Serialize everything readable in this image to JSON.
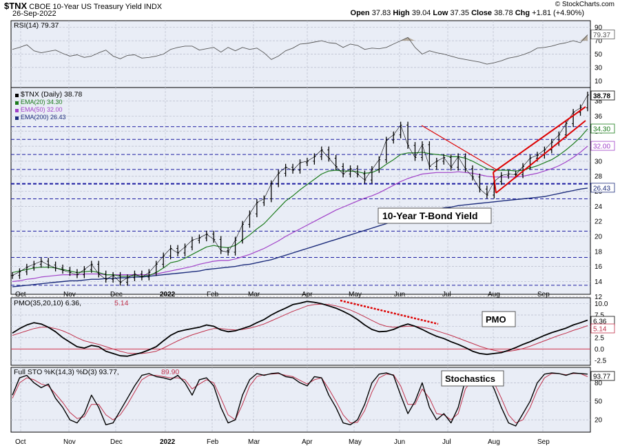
{
  "header": {
    "symbol": "$TNX",
    "name": "CBOE 10-Year US Treasury Yield",
    "exchange": "INDX",
    "date": "26-Sep-2022",
    "open_label": "Open",
    "open": "37.83",
    "high_label": "High",
    "high": "39.04",
    "low_label": "Low",
    "low": "37.35",
    "close_label": "Close",
    "close": "38.78",
    "chg_label": "Chg",
    "chg": "+1.81 (+4.90%)",
    "watermark": "© StockCharts.com"
  },
  "colors": {
    "background": "#ffffff",
    "panel_bg": "#e9edf6",
    "price": "#000000",
    "ema20": "#1a7a1a",
    "ema50": "#a040c8",
    "ema200": "#1a2a7a",
    "annot_red": "#dd0000",
    "hline": "#1a1aa0",
    "signal": "#c0304a"
  },
  "chart_data": [
    {
      "type": "line",
      "panel": "RSI",
      "title": "RSI(14) 79.37",
      "y_ticks": [
        10,
        30,
        50,
        70,
        90
      ],
      "last_value_label": "79.37",
      "ylim": [
        0,
        100
      ],
      "series": [
        {
          "name": "RSI(14)",
          "values": [
            57,
            60,
            64,
            55,
            52,
            54,
            56,
            51,
            47,
            49,
            45,
            47,
            52,
            56,
            47,
            43,
            48,
            49,
            44,
            45,
            47,
            50,
            57,
            60,
            62,
            62,
            56,
            58,
            60,
            53,
            60,
            55,
            60,
            57,
            59,
            52,
            42,
            47,
            55,
            59,
            65,
            66,
            68,
            70,
            67,
            66,
            60,
            65,
            63,
            57,
            59,
            58,
            60,
            65,
            70,
            75,
            60,
            50,
            55,
            52,
            50,
            47,
            44,
            42,
            40,
            38,
            35,
            37,
            40,
            44,
            46,
            49,
            53,
            59,
            60,
            62,
            65,
            67,
            70,
            67,
            79
          ]
        }
      ]
    },
    {
      "type": "line",
      "panel": "Price",
      "title": "$TNX (Daily) 38.78",
      "x_labels": [
        "Oct",
        "Nov",
        "Dec",
        "2022",
        "Feb",
        "Mar",
        "Apr",
        "May",
        "Jun",
        "Jul",
        "Aug",
        "Sep"
      ],
      "y_ticks": [
        12,
        14,
        16,
        18,
        20,
        22,
        24,
        26,
        28,
        30,
        32,
        34,
        36,
        38
      ],
      "ylim": [
        12.3,
        39.8
      ],
      "h_lines": [
        13.5,
        17.2,
        20.7,
        25.0,
        27.0,
        28.9,
        30.9,
        32.9,
        34.6
      ],
      "series": [
        {
          "name": "$TNX (Daily)",
          "last_value_label": "38.78",
          "values": [
            14.8,
            15.3,
            15.9,
            16.3,
            16.7,
            16.2,
            15.8,
            15.5,
            15.2,
            14.9,
            15.6,
            16.3,
            15.0,
            14.3,
            14.8,
            13.9,
            14.5,
            15.0,
            14.6,
            15.2,
            16.3,
            17.4,
            18.4,
            17.8,
            18.6,
            19.5,
            19.8,
            20.3,
            19.6,
            18.1,
            17.9,
            19.5,
            21.6,
            23.0,
            24.5,
            25.0,
            27.0,
            28.4,
            29.2,
            28.8,
            29.8,
            30.0,
            30.6,
            31.5,
            30.4,
            29.3,
            28.3,
            29.0,
            28.3,
            27.5,
            28.9,
            30.2,
            32.8,
            33.5,
            34.8,
            32.1,
            30.5,
            32.2,
            29.3,
            30.0,
            30.5,
            29.2,
            30.6,
            29.0,
            27.9,
            26.3,
            25.5,
            27.3,
            28.1,
            28.3,
            28.2,
            29.3,
            30.4,
            30.8,
            31.5,
            32.5,
            33.5,
            35.0,
            36.5,
            37.1,
            38.8
          ]
        },
        {
          "name": "EMA(20)",
          "last_value_label": "34.30",
          "values": [
            15.2,
            15.4,
            15.6,
            15.8,
            15.9,
            15.9,
            15.8,
            15.6,
            15.4,
            15.2,
            15.3,
            15.4,
            15.2,
            14.9,
            14.9,
            14.7,
            14.7,
            14.8,
            14.7,
            14.8,
            15.2,
            15.8,
            16.5,
            16.7,
            17.1,
            17.6,
            18.1,
            18.6,
            18.8,
            18.6,
            18.5,
            18.8,
            19.5,
            20.2,
            21.0,
            21.7,
            22.7,
            23.7,
            24.7,
            25.4,
            26.2,
            26.9,
            27.6,
            28.3,
            28.7,
            28.8,
            28.7,
            28.7,
            28.6,
            28.4,
            28.5,
            28.9,
            29.6,
            30.2,
            30.9,
            31.1,
            31.1,
            31.2,
            31.0,
            30.9,
            30.8,
            30.6,
            30.6,
            30.4,
            30.0,
            29.5,
            29.0,
            28.8,
            28.8,
            28.8,
            28.7,
            28.8,
            29.1,
            29.4,
            29.8,
            30.2,
            30.8,
            31.5,
            32.3,
            33.2,
            34.3
          ]
        },
        {
          "name": "EMA(50)",
          "last_value_label": "32.00",
          "values": [
            14.0,
            14.1,
            14.3,
            14.4,
            14.6,
            14.7,
            14.8,
            14.9,
            14.9,
            14.9,
            15.0,
            15.0,
            15.0,
            14.9,
            14.9,
            14.9,
            14.9,
            14.9,
            14.9,
            14.9,
            15.0,
            15.2,
            15.4,
            15.6,
            15.8,
            16.0,
            16.3,
            16.5,
            16.7,
            16.8,
            16.8,
            17.0,
            17.3,
            17.6,
            18.0,
            18.4,
            18.9,
            19.4,
            20.0,
            20.5,
            21.0,
            21.5,
            22.0,
            22.5,
            23.0,
            23.5,
            23.9,
            24.3,
            24.7,
            25.1,
            25.4,
            25.8,
            26.3,
            26.8,
            27.3,
            27.7,
            28.0,
            28.3,
            28.4,
            28.5,
            28.5,
            28.5,
            28.6,
            28.5,
            28.4,
            28.2,
            28.0,
            27.9,
            27.9,
            27.9,
            27.9,
            28.0,
            28.2,
            28.4,
            28.7,
            29.0,
            29.4,
            29.9,
            30.5,
            31.2,
            32.0
          ]
        },
        {
          "name": "EMA(200)",
          "last_value_label": "26.43",
          "values": [
            13.3,
            13.4,
            13.5,
            13.6,
            13.7,
            13.8,
            13.9,
            14.0,
            14.1,
            14.1,
            14.2,
            14.3,
            14.3,
            14.4,
            14.4,
            14.5,
            14.5,
            14.6,
            14.6,
            14.7,
            14.8,
            14.9,
            15.0,
            15.1,
            15.2,
            15.3,
            15.4,
            15.6,
            15.7,
            15.8,
            15.9,
            16.0,
            16.2,
            16.3,
            16.5,
            16.7,
            16.9,
            17.2,
            17.5,
            17.8,
            18.1,
            18.4,
            18.7,
            19.0,
            19.3,
            19.6,
            19.9,
            20.2,
            20.5,
            20.8,
            21.1,
            21.4,
            21.7,
            22.0,
            22.3,
            22.6,
            22.9,
            23.2,
            23.4,
            23.6,
            23.8,
            23.9,
            24.1,
            24.2,
            24.3,
            24.4,
            24.5,
            24.6,
            24.7,
            24.8,
            24.9,
            25.0,
            25.1,
            25.2,
            25.3,
            25.5,
            25.7,
            25.9,
            26.1,
            26.3,
            26.43
          ]
        }
      ],
      "annotations": [
        {
          "text": "10-Year T-Bond Yield"
        }
      ]
    },
    {
      "type": "line",
      "panel": "PMO",
      "title": "PMO(35,20,10) 6.36, 5.14",
      "y_ticks": [
        -2.5,
        0.0,
        2.5,
        5.0,
        7.5,
        10.0
      ],
      "ylim": [
        -3.6,
        11.3
      ],
      "zero_line": 0,
      "annotation_text": "PMO",
      "series": [
        {
          "name": "PMO",
          "last_value_label": "6.36",
          "values": [
            3.5,
            4.5,
            5.3,
            5.8,
            5.5,
            4.8,
            3.8,
            2.5,
            1.5,
            0.5,
            0.2,
            0.8,
            0.5,
            -0.5,
            -1.0,
            -1.5,
            -1.6,
            -1.2,
            -0.8,
            -0.2,
            0.5,
            1.8,
            3.0,
            3.8,
            4.2,
            4.5,
            4.8,
            5.3,
            5.0,
            4.2,
            3.8,
            4.0,
            4.5,
            5.0,
            5.8,
            6.5,
            7.5,
            8.3,
            9.0,
            9.8,
            10.1,
            10.5,
            10.3,
            10.0,
            9.5,
            9.0,
            8.3,
            7.5,
            6.5,
            5.3,
            4.3,
            3.8,
            3.9,
            4.3,
            5.0,
            5.5,
            5.0,
            4.3,
            3.5,
            2.8,
            2.3,
            1.6,
            1.0,
            0.3,
            -0.5,
            -1.0,
            -1.2,
            -1.0,
            -0.8,
            -0.3,
            0.3,
            1.0,
            1.6,
            2.3,
            3.0,
            3.6,
            4.1,
            4.6,
            5.3,
            5.8,
            6.36
          ]
        },
        {
          "name": "Signal",
          "last_value_label": "5.14",
          "values": [
            3.0,
            3.5,
            4.0,
            4.5,
            4.8,
            4.8,
            4.5,
            4.0,
            3.3,
            2.5,
            1.8,
            1.4,
            1.0,
            0.5,
            0.0,
            -0.5,
            -0.9,
            -1.0,
            -1.0,
            -0.8,
            -0.5,
            0.2,
            1.0,
            1.8,
            2.5,
            3.1,
            3.6,
            4.1,
            4.5,
            4.5,
            4.3,
            4.2,
            4.3,
            4.6,
            5.0,
            5.5,
            6.2,
            6.9,
            7.6,
            8.3,
            8.9,
            9.5,
            9.8,
            9.9,
            9.8,
            9.5,
            9.1,
            8.6,
            7.9,
            7.1,
            6.3,
            5.5,
            5.0,
            4.8,
            4.9,
            5.0,
            5.0,
            4.8,
            4.5,
            4.0,
            3.5,
            3.0,
            2.4,
            1.8,
            1.2,
            0.6,
            0.1,
            -0.3,
            -0.6,
            -0.5,
            -0.3,
            0.1,
            0.6,
            1.2,
            1.8,
            2.4,
            3.0,
            3.5,
            4.1,
            4.6,
            5.14
          ]
        }
      ]
    },
    {
      "type": "line",
      "panel": "STO",
      "title": "Full STO %K(14,3) %D(3) 93.77, 89.90",
      "y_ticks": [
        20,
        50,
        80
      ],
      "ylim": [
        0,
        105
      ],
      "annotation_text": "Stochastics",
      "series": [
        {
          "name": "%K",
          "last_value_label": "93.77",
          "values": [
            60,
            88,
            92,
            80,
            72,
            78,
            55,
            40,
            20,
            15,
            30,
            60,
            40,
            12,
            15,
            35,
            55,
            75,
            92,
            95,
            90,
            88,
            85,
            92,
            80,
            60,
            85,
            88,
            75,
            40,
            15,
            20,
            60,
            85,
            95,
            92,
            95,
            96,
            90,
            88,
            80,
            75,
            90,
            88,
            60,
            40,
            15,
            12,
            20,
            45,
            80,
            94,
            96,
            92,
            60,
            30,
            50,
            80,
            40,
            20,
            30,
            15,
            40,
            85,
            90,
            95,
            92,
            70,
            40,
            15,
            10,
            30,
            50,
            80,
            94,
            96,
            95,
            92,
            96,
            95,
            94
          ]
        },
        {
          "name": "%D",
          "last_value_label": "89.90",
          "values": [
            55,
            80,
            88,
            85,
            78,
            75,
            62,
            48,
            32,
            22,
            25,
            45,
            45,
            28,
            20,
            28,
            45,
            65,
            85,
            92,
            92,
            90,
            88,
            88,
            85,
            70,
            78,
            85,
            80,
            55,
            28,
            20,
            45,
            75,
            90,
            93,
            94,
            95,
            92,
            90,
            84,
            78,
            85,
            88,
            70,
            50,
            28,
            15,
            16,
            35,
            65,
            88,
            94,
            93,
            75,
            45,
            45,
            70,
            55,
            30,
            28,
            20,
            30,
            70,
            86,
            93,
            93,
            80,
            55,
            28,
            15,
            20,
            40,
            68,
            88,
            95,
            95,
            93,
            95,
            95,
            89.9
          ]
        }
      ]
    }
  ]
}
